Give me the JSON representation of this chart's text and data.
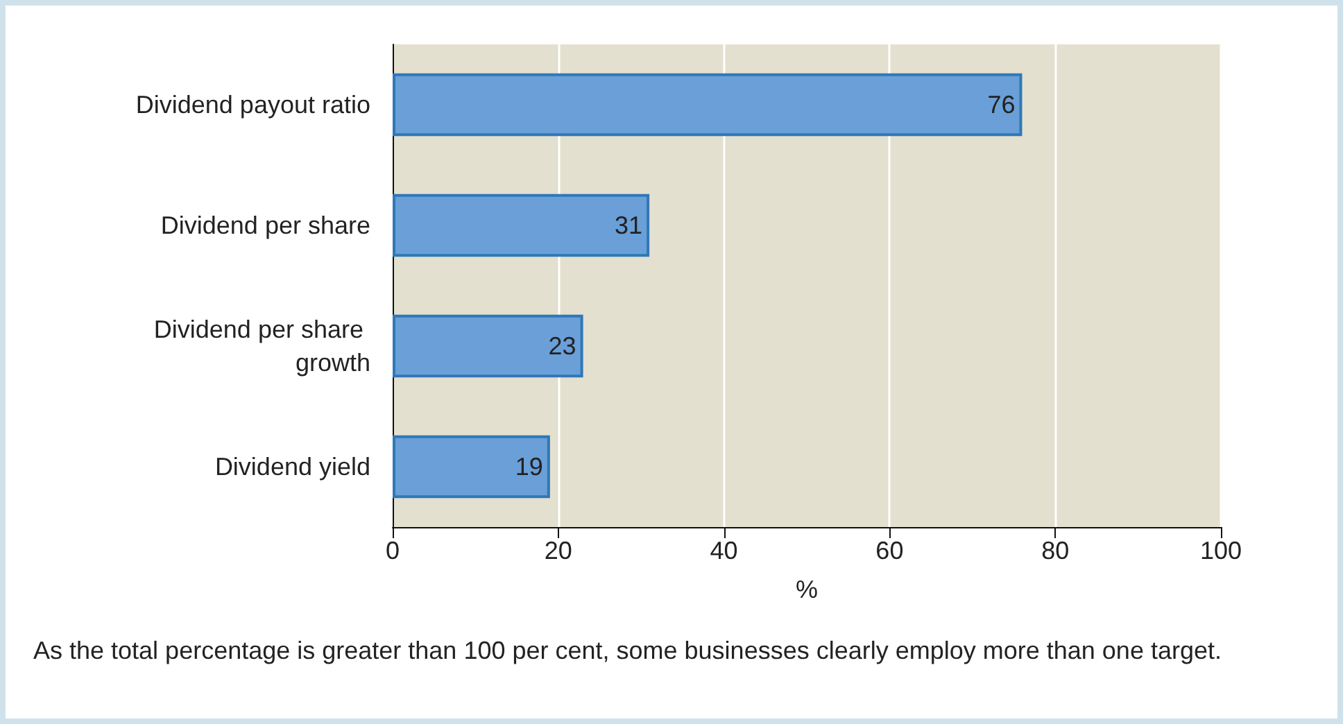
{
  "chart_data": {
    "type": "bar",
    "orientation": "horizontal",
    "xlabel": "%",
    "categories": [
      "Dividend payout ratio",
      "Dividend per share",
      "Dividend per share growth",
      "Dividend yield"
    ],
    "values": [
      76,
      31,
      23,
      19
    ],
    "color": "#6a9fd8",
    "data_labels": true,
    "xlim": [
      0,
      100
    ],
    "xticks": [
      0,
      20,
      40,
      60,
      80,
      100
    ],
    "grid": "x",
    "annotations": [
      "As the total percentage is greater than 100 per cent, some businesses clearly employ more than one target."
    ]
  }
}
